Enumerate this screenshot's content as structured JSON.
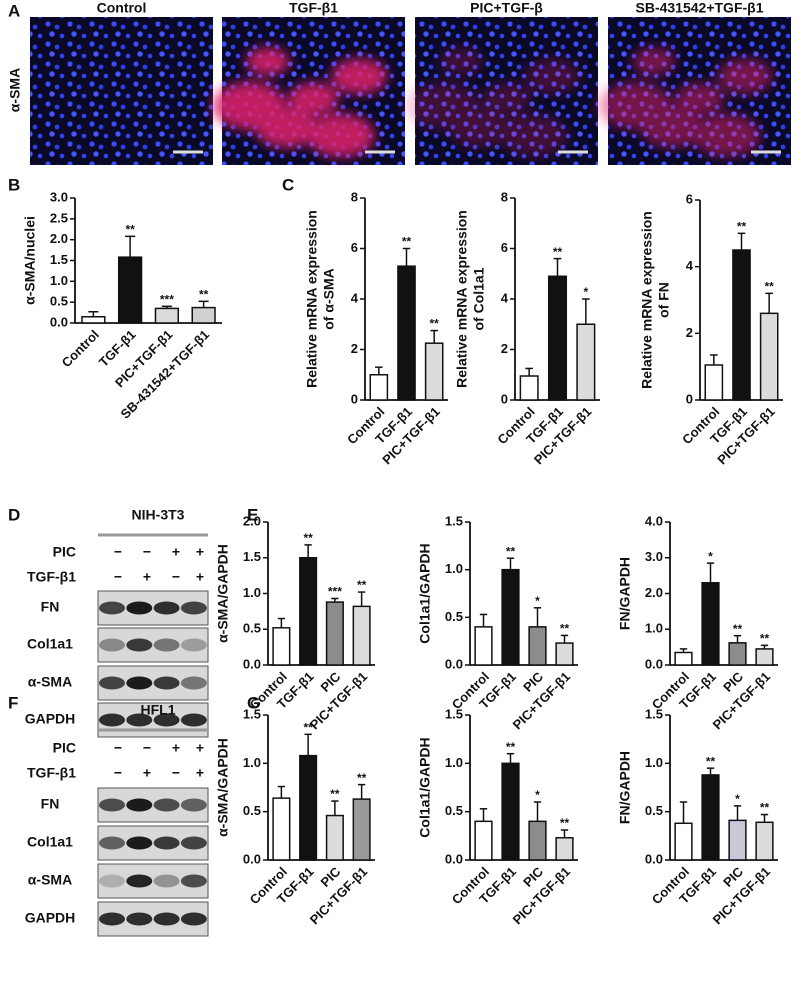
{
  "panel_labels": [
    "A",
    "B",
    "C",
    "D",
    "E",
    "F",
    "G"
  ],
  "microscopy": {
    "row_label": "α-SMA",
    "columns": [
      "Control",
      "TGF-β1",
      "PIC+TGF-β",
      "SB-431542+TGF-β1"
    ]
  },
  "blots": [
    {
      "cell_line": "NIH-3T3",
      "conditions": [
        {
          "label": "PIC",
          "signs": [
            "−",
            "−",
            "+",
            "+"
          ]
        },
        {
          "label": "TGF-β1",
          "signs": [
            "−",
            "+",
            "−",
            "+"
          ]
        }
      ],
      "bands": [
        "FN",
        "Col1a1",
        "α-SMA",
        "GAPDH"
      ]
    },
    {
      "cell_line": "HFL1",
      "conditions": [
        {
          "label": "PIC",
          "signs": [
            "−",
            "−",
            "+",
            "+"
          ]
        },
        {
          "label": "TGF-β1",
          "signs": [
            "−",
            "+",
            "−",
            "+"
          ]
        }
      ],
      "bands": [
        "FN",
        "Col1a1",
        "α-SMA",
        "GAPDH"
      ]
    }
  ],
  "chart_data": [
    {
      "type": "bar",
      "ylabel": [
        "α-SMA/nuclei"
      ],
      "categories": [
        "Control",
        "TGF-β1",
        "PIC+TGF-β1",
        "SB-431542+TGF-β1"
      ],
      "values": [
        0.15,
        1.58,
        0.35,
        0.37
      ],
      "errors": [
        0.12,
        0.5,
        0.05,
        0.15
      ],
      "annotations": [
        null,
        "**",
        "***",
        "**"
      ],
      "colors": [
        "#ffffff",
        "#111111",
        "#dcdcdc",
        "#d0d0d0"
      ],
      "ylim": [
        0,
        3
      ],
      "yticks": [
        {
          "value": 0,
          "label": "0.0"
        },
        {
          "value": 0.5,
          "label": "0.5"
        },
        {
          "value": 1,
          "label": "1.0"
        },
        {
          "value": 1.5,
          "label": "1.5"
        },
        {
          "value": 2,
          "label": "2.0"
        },
        {
          "value": 2.5,
          "label": "2.5"
        },
        {
          "value": 3,
          "label": "3.0"
        }
      ]
    },
    {
      "type": "bar",
      "ylabel": [
        "Relative mRNA expression",
        "of α-SMA"
      ],
      "categories": [
        "Control",
        "TGF-β1",
        "PIC+TGF-β1"
      ],
      "values": [
        1.0,
        5.3,
        2.25
      ],
      "errors": [
        0.3,
        0.7,
        0.5
      ],
      "annotations": [
        null,
        "**",
        "**"
      ],
      "colors": [
        "#ffffff",
        "#111111",
        "#dcdcdc"
      ],
      "ylim": [
        0,
        8
      ],
      "yticks": [
        0,
        2,
        4,
        6,
        8
      ]
    },
    {
      "type": "bar",
      "ylabel": [
        "Relative mRNA expression",
        "of Col1a1"
      ],
      "categories": [
        "Control",
        "TGF-β1",
        "PIC+TGF-β1"
      ],
      "values": [
        0.95,
        4.9,
        3.0
      ],
      "errors": [
        0.3,
        0.7,
        1.0
      ],
      "annotations": [
        null,
        "**",
        "*"
      ],
      "colors": [
        "#ffffff",
        "#111111",
        "#dcdcdc"
      ],
      "ylim": [
        0,
        8
      ],
      "yticks": [
        0,
        2,
        4,
        6,
        8
      ]
    },
    {
      "type": "bar",
      "ylabel": [
        "Relative mRNA expression",
        "of FN"
      ],
      "categories": [
        "Control",
        "TGF-β1",
        "PIC+TGF-β1"
      ],
      "values": [
        1.05,
        4.5,
        2.6
      ],
      "errors": [
        0.3,
        0.5,
        0.6
      ],
      "annotations": [
        null,
        "**",
        "**"
      ],
      "colors": [
        "#ffffff",
        "#111111",
        "#dcdcdc"
      ],
      "ylim": [
        0,
        6
      ],
      "yticks": [
        0,
        2,
        4,
        6
      ]
    },
    {
      "type": "bar",
      "ylabel": [
        "α-SMA/GAPDH"
      ],
      "categories": [
        "Control",
        "TGF-β1",
        "PIC",
        "PIC+TGF-β1"
      ],
      "values": [
        0.52,
        1.5,
        0.88,
        0.82
      ],
      "errors": [
        0.13,
        0.18,
        0.05,
        0.2
      ],
      "annotations": [
        null,
        "**",
        "***",
        "**"
      ],
      "colors": [
        "#ffffff",
        "#111111",
        "#8c8c8c",
        "#dcdcdc"
      ],
      "ylim": [
        0,
        2
      ],
      "yticks": [
        {
          "value": 0,
          "label": "0.0"
        },
        {
          "value": 0.5,
          "label": "0.5"
        },
        {
          "value": 1,
          "label": "1.0"
        },
        {
          "value": 1.5,
          "label": "1.5"
        },
        {
          "value": 2,
          "label": "2.0"
        }
      ]
    },
    {
      "type": "bar",
      "ylabel": [
        "Col1a1/GAPDH"
      ],
      "categories": [
        "Control",
        "TGF-β1",
        "PIC",
        "PIC+TGF-β1"
      ],
      "values": [
        0.4,
        1.0,
        0.4,
        0.23
      ],
      "errors": [
        0.13,
        0.12,
        0.2,
        0.08
      ],
      "annotations": [
        null,
        "**",
        "*",
        "**"
      ],
      "colors": [
        "#ffffff",
        "#111111",
        "#8c8c8c",
        "#dcdcdc"
      ],
      "ylim": [
        0,
        1.5
      ],
      "yticks": [
        {
          "value": 0,
          "label": "0.0"
        },
        {
          "value": 0.5,
          "label": "0.5"
        },
        {
          "value": 1,
          "label": "1.0"
        },
        {
          "value": 1.5,
          "label": "1.5"
        }
      ]
    },
    {
      "type": "bar",
      "ylabel": [
        "FN/GAPDH"
      ],
      "categories": [
        "Control",
        "TGF-β1",
        "PIC",
        "PIC+TGF-β1"
      ],
      "values": [
        0.35,
        2.3,
        0.62,
        0.45
      ],
      "errors": [
        0.1,
        0.55,
        0.2,
        0.1
      ],
      "annotations": [
        null,
        "*",
        "**",
        "**"
      ],
      "colors": [
        "#ffffff",
        "#111111",
        "#8c8c8c",
        "#dcdcdc"
      ],
      "ylim": [
        0,
        4
      ],
      "yticks": [
        {
          "value": 0,
          "label": "0.0"
        },
        {
          "value": 1,
          "label": "1.0"
        },
        {
          "value": 2,
          "label": "2.0"
        },
        {
          "value": 3,
          "label": "3.0"
        },
        {
          "value": 4,
          "label": "4.0"
        }
      ]
    },
    {
      "type": "bar",
      "ylabel": [
        "α-SMA/GAPDH"
      ],
      "categories": [
        "Control",
        "TGF-β1",
        "PIC",
        "PIC+TGF-β1"
      ],
      "values": [
        0.64,
        1.08,
        0.46,
        0.63
      ],
      "errors": [
        0.12,
        0.22,
        0.15,
        0.15
      ],
      "annotations": [
        null,
        "**",
        "**",
        "**"
      ],
      "colors": [
        "#ffffff",
        "#111111",
        "#dcdcdc",
        "#9a9a9a"
      ],
      "ylim": [
        0,
        1.5
      ],
      "yticks": [
        {
          "value": 0,
          "label": "0.0"
        },
        {
          "value": 0.5,
          "label": "0.5"
        },
        {
          "value": 1,
          "label": "1.0"
        },
        {
          "value": 1.5,
          "label": "1.5"
        }
      ]
    },
    {
      "type": "bar",
      "ylabel": [
        "Col1a1/GAPDH"
      ],
      "categories": [
        "Control",
        "TGF-β1",
        "PIC",
        "PIC+TGF-β1"
      ],
      "values": [
        0.4,
        1.0,
        0.4,
        0.23
      ],
      "errors": [
        0.13,
        0.1,
        0.2,
        0.08
      ],
      "annotations": [
        null,
        "**",
        "*",
        "**"
      ],
      "colors": [
        "#ffffff",
        "#111111",
        "#8c8c8c",
        "#dcdcdc"
      ],
      "ylim": [
        0,
        1.5
      ],
      "yticks": [
        {
          "value": 0,
          "label": "0.0"
        },
        {
          "value": 0.5,
          "label": "0.5"
        },
        {
          "value": 1,
          "label": "1.0"
        },
        {
          "value": 1.5,
          "label": "1.5"
        }
      ]
    },
    {
      "type": "bar",
      "ylabel": [
        "FN/GAPDH"
      ],
      "categories": [
        "Control",
        "TGF-β1",
        "PIC",
        "PIC+TGF-β1"
      ],
      "values": [
        0.38,
        0.88,
        0.41,
        0.39
      ],
      "errors": [
        0.22,
        0.07,
        0.15,
        0.08
      ],
      "annotations": [
        null,
        "**",
        "*",
        "**"
      ],
      "colors": [
        "#ffffff",
        "#111111",
        "#c8c8d8",
        "#dcdcdc"
      ],
      "ylim": [
        0,
        1.5
      ],
      "yticks": [
        {
          "value": 0,
          "label": "0.0"
        },
        {
          "value": 0.5,
          "label": "0.5"
        },
        {
          "value": 1,
          "label": "1.0"
        },
        {
          "value": 1.5,
          "label": "1.5"
        }
      ]
    }
  ]
}
